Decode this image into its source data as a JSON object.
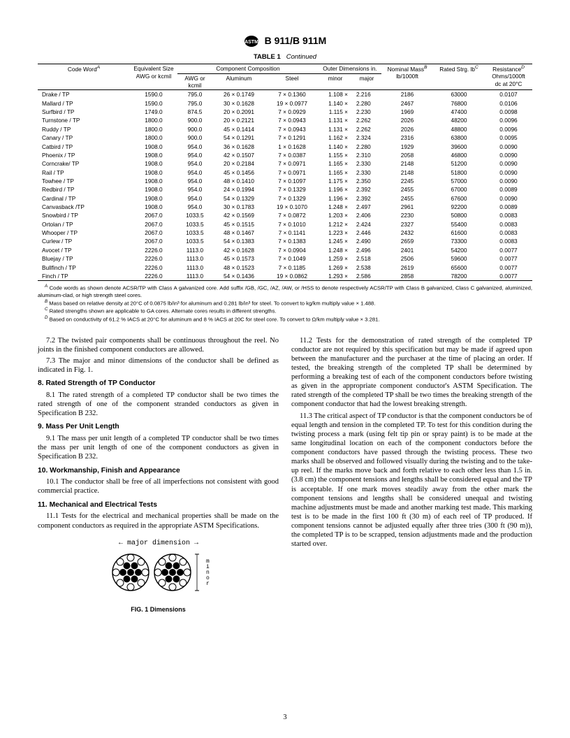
{
  "header": {
    "designation": "B 911/B 911M"
  },
  "table": {
    "caption_label": "TABLE 1",
    "caption_cont": "Continued",
    "headers": {
      "code_word": "Code Word",
      "equivalent": "Equivalent Size AWG or kcmil",
      "component_comp": "Component Composition",
      "awg": "AWG or kcmil",
      "aluminum": "Aluminum",
      "steel": "Steel",
      "outer": "Outer Dimensions in.",
      "minor": "minor",
      "major": "major",
      "nominal": "Nominal Mass",
      "nominal_unit": "lb/1000ft",
      "rated": "Rated Strg. lb",
      "resistance": "Resistance",
      "resistance_sub1": "Ohms/1000ft",
      "resistance_sub2": "dc at 20°C"
    },
    "rows": [
      {
        "cw": "Drake / TP",
        "eq": "1590.0",
        "awg": "795.0",
        "al": "26 × 0.1749",
        "st": "7 × 0.1360",
        "mn": "1.108 ×",
        "mj": "2.216",
        "nm": "2186",
        "rs": "63000",
        "re": "0.0107"
      },
      {
        "cw": "Mallard / TP",
        "eq": "1590.0",
        "awg": "795.0",
        "al": "30 × 0.1628",
        "st": "19 × 0.0977",
        "mn": "1.140 ×",
        "mj": "2.280",
        "nm": "2467",
        "rs": "76800",
        "re": "0.0106"
      },
      {
        "cw": "Surfbird / TP",
        "eq": "1749.0",
        "awg": "874.5",
        "al": "20 × 0.2091",
        "st": "7 × 0.0929",
        "mn": "1.115 ×",
        "mj": "2.230",
        "nm": "1969",
        "rs": "47400",
        "re": "0.0098"
      },
      {
        "cw": "Turnstone / TP",
        "eq": "1800.0",
        "awg": "900.0",
        "al": "20 × 0.2121",
        "st": "7 × 0.0943",
        "mn": "1.131 ×",
        "mj": "2.262",
        "nm": "2026",
        "rs": "48200",
        "re": "0.0096"
      },
      {
        "cw": "Ruddy / TP",
        "eq": "1800.0",
        "awg": "900.0",
        "al": "45 × 0.1414",
        "st": "7 × 0.0943",
        "mn": "1.131 ×",
        "mj": "2.262",
        "nm": "2026",
        "rs": "48800",
        "re": "0.0096"
      },
      {
        "cw": "Canary / TP",
        "eq": "1800.0",
        "awg": "900.0",
        "al": "54 × 0.1291",
        "st": "7 × 0.1291",
        "mn": "1.162 ×",
        "mj": "2.324",
        "nm": "2316",
        "rs": "63800",
        "re": "0.0095"
      },
      {
        "cw": "Catbird / TP",
        "eq": "1908.0",
        "awg": "954.0",
        "al": "36 × 0.1628",
        "st": "1 × 0.1628",
        "mn": "1.140 ×",
        "mj": "2.280",
        "nm": "1929",
        "rs": "39600",
        "re": "0.0090"
      },
      {
        "cw": "Phoenix / TP",
        "eq": "1908.0",
        "awg": "954.0",
        "al": "42 × 0.1507",
        "st": "7 × 0.0387",
        "mn": "1.155 ×",
        "mj": "2.310",
        "nm": "2058",
        "rs": "46800",
        "re": "0.0090"
      },
      {
        "cw": "Corncrake/ TP",
        "eq": "1908.0",
        "awg": "954.0",
        "al": "20 × 0.2184",
        "st": "7 × 0.0971",
        "mn": "1.165 ×",
        "mj": "2.330",
        "nm": "2148",
        "rs": "51200",
        "re": "0.0090"
      },
      {
        "cw": "Rail / TP",
        "eq": "1908.0",
        "awg": "954.0",
        "al": "45 × 0.1456",
        "st": "7 × 0.0971",
        "mn": "1.165 ×",
        "mj": "2.330",
        "nm": "2148",
        "rs": "51800",
        "re": "0.0090"
      },
      {
        "cw": "Towhee / TP",
        "eq": "1908.0",
        "awg": "954.0",
        "al": "48 × 0.1410",
        "st": "7 × 0.1097",
        "mn": "1.175 ×",
        "mj": "2.350",
        "nm": "2245",
        "rs": "57000",
        "re": "0.0090"
      },
      {
        "cw": "Redbird / TP",
        "eq": "1908.0",
        "awg": "954.0",
        "al": "24 × 0.1994",
        "st": "7 × 0.1329",
        "mn": "1.196 ×",
        "mj": "2.392",
        "nm": "2455",
        "rs": "67000",
        "re": "0.0089"
      },
      {
        "cw": "Cardinal / TP",
        "eq": "1908.0",
        "awg": "954.0",
        "al": "54 × 0.1329",
        "st": "7 × 0.1329",
        "mn": "1.196 ×",
        "mj": "2.392",
        "nm": "2455",
        "rs": "67600",
        "re": "0.0090"
      },
      {
        "cw": "Canvasback /TP",
        "eq": "1908.0",
        "awg": "954.0",
        "al": "30 × 0.1783",
        "st": "19 × 0.1070",
        "mn": "1.248 ×",
        "mj": "2.497",
        "nm": "2961",
        "rs": "92200",
        "re": "0.0089"
      },
      {
        "cw": "Snowbird / TP",
        "eq": "2067.0",
        "awg": "1033.5",
        "al": "42 × 0.1569",
        "st": "7 × 0.0872",
        "mn": "1.203 ×",
        "mj": "2.406",
        "nm": "2230",
        "rs": "50800",
        "re": "0.0083"
      },
      {
        "cw": "Ortolan / TP",
        "eq": "2067.0",
        "awg": "1033.5",
        "al": "45 × 0.1515",
        "st": "7 × 0.1010",
        "mn": "1.212 ×",
        "mj": "2.424",
        "nm": "2327",
        "rs": "55400",
        "re": "0.0083"
      },
      {
        "cw": "Whooper / TP",
        "eq": "2067.0",
        "awg": "1033.5",
        "al": "48 × 0.1467",
        "st": "7 × 0.1141",
        "mn": "1.223 ×",
        "mj": "2.446",
        "nm": "2432",
        "rs": "61600",
        "re": "0.0083"
      },
      {
        "cw": "Curlew / TP",
        "eq": "2067.0",
        "awg": "1033.5",
        "al": "54 × 0.1383",
        "st": "7 × 0.1383",
        "mn": "1.245 ×",
        "mj": "2.490",
        "nm": "2659",
        "rs": "73300",
        "re": "0.0083"
      },
      {
        "cw": "Avocet / TP",
        "eq": "2226.0",
        "awg": "1113.0",
        "al": "42 × 0.1628",
        "st": "7 × 0.0904",
        "mn": "1.248 ×",
        "mj": "2.496",
        "nm": "2401",
        "rs": "54200",
        "re": "0.0077"
      },
      {
        "cw": "Bluejay / TP",
        "eq": "2226.0",
        "awg": "1113.0",
        "al": "45 × 0.1573",
        "st": "7 × 0.1049",
        "mn": "1.259 ×",
        "mj": "2.518",
        "nm": "2506",
        "rs": "59600",
        "re": "0.0077"
      },
      {
        "cw": "Bullfinch / TP",
        "eq": "2226.0",
        "awg": "1113.0",
        "al": "48 × 0.1523",
        "st": "7 × 0.1185",
        "mn": "1.269 ×",
        "mj": "2.538",
        "nm": "2619",
        "rs": "65600",
        "re": "0.0077"
      },
      {
        "cw": "Finch / TP",
        "eq": "2226.0",
        "awg": "1113.0",
        "al": "54 × 0.1436",
        "st": "19 × 0.0862",
        "mn": "1.293 ×",
        "mj": "2.586",
        "nm": "2858",
        "rs": "78200",
        "re": "0.0077"
      }
    ],
    "footnotes": {
      "A": "Code words as shown denote ACSR/TP with Class A galvanized core. Add suffix /GB, /GC, /AZ, /AW, or /HSS to denote respectively ACSR/TP with Class B galvanized, Class C galvanized, aluminized, aluminum-clad, or high strength steel cores.",
      "B": "Mass based on relative density at 20°C of 0.0875 lb/in³ for aluminum and 0.281 lb/in³ for steel. To convert to kg/km multiply value × 1.488.",
      "C": "Rated strengths shown are applicable to GA cores. Alternate cores results in different strengths.",
      "D": "Based on conductivity of 61.2 % IACS at 20°C for aluminum and 8 % IACS at 20C for steel core. To convert to Ω/km multiply value × 3.281."
    }
  },
  "body": {
    "p72": "7.2 The twisted pair components shall be continuous throughout the reel. No joints in the finished component conductors are allowed.",
    "p73": "7.3 The major and minor dimensions of the conductor shall be defined as indicated in Fig. 1.",
    "h8": "8. Rated Strength of TP Conductor",
    "p81": "8.1 The rated strength of a completed TP conductor shall be two times the rated strength of one of the component stranded conductors as given in Specification B 232.",
    "h9": "9. Mass Per Unit Length",
    "p91": "9.1 The mass per unit length of a completed TP conductor shall be two times the mass per unit length of one of the component conductors as given in Specification B 232.",
    "h10": "10. Workmanship, Finish and Appearance",
    "p101": "10.1 The conductor shall be free of all imperfections not consistent with good commercial practice.",
    "h11": "11. Mechanical and Electrical Tests",
    "p111": "11.1 Tests for the electrical and mechanical properties shall be made on the component conductors as required in the appropriate ASTM Specifications.",
    "p112": "11.2 Tests for the demonstration of rated strength of the completed TP conductor are not required by this specification but may be made if agreed upon between the manufacturer and the purchaser at the time of placing an order. If tested, the breaking strength of the completed TP shall be determined by performing a breaking test of each of the component conductors before twisting as given in the appropriate component conductor's ASTM Specification. The rated strength of the completed TP shall be two times the breaking strength of the component conductor that had the lowest breaking strength.",
    "p113": "11.3 The critical aspect of TP conductor is that the component conductors be of equal length and tension in the completed TP. To test for this condition during the twisting process a mark (using felt tip pin or spray paint) is to be made at the same longitudinal location on each of the component conductors before the component conductors have passed through the twisting process. These two marks shall be observed and followed visually during the twisting and to the take-up reel. If the marks move back and forth relative to each other less than 1.5 in. (3.8 cm) the component tensions and lengths shall be considered equal and the TP is acceptable. If one mark moves steadily away from the other mark the component tensions and lengths shall be considered unequal and twisting machine adjustments must be made and another marking test made. This marking test is to be made in the first 100 ft (30 m) of each reel of TP produced. If component tensions cannot be adjusted equally after three tries (300 ft (90 m)), the completed TP is to be scrapped, tension adjustments made and the production started over.",
    "fig_label": "FIG. 1 Dimensions",
    "fig_major": "major dimension",
    "fig_minor": "minor"
  },
  "page": "3"
}
